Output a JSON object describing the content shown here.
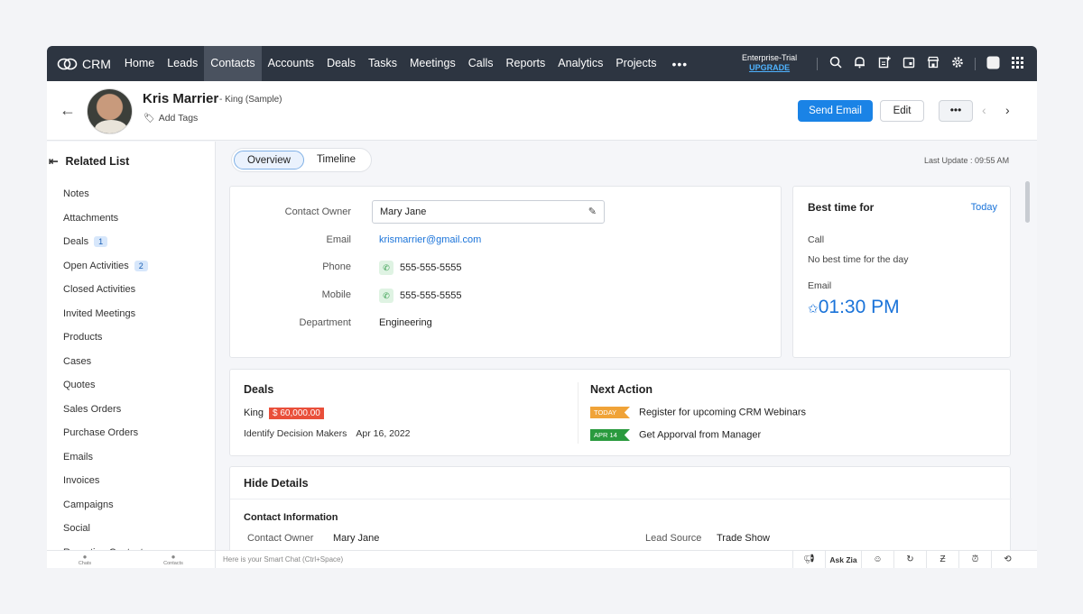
{
  "topnav": {
    "logo_text": "CRM",
    "items": [
      "Home",
      "Leads",
      "Contacts",
      "Accounts",
      "Deals",
      "Tasks",
      "Meetings",
      "Calls",
      "Reports",
      "Analytics",
      "Projects"
    ],
    "active": "Contacts",
    "more": "•••",
    "trial_label": "Enterprise-Trial",
    "upgrade_label": "UPGRADE",
    "icons": [
      "search-icon",
      "bell-icon",
      "add-note-icon",
      "calendar-icon",
      "store-icon",
      "gear-icon",
      "profile-icon",
      "apps-grid-icon"
    ]
  },
  "header": {
    "contact_name": "Kris Marrier",
    "subtitle": "King (Sample)",
    "add_tags": "Add Tags",
    "send_email": "Send Email",
    "edit": "Edit",
    "more": "•••"
  },
  "sidebar": {
    "title": "Related List",
    "items": [
      {
        "label": "Notes",
        "badge": ""
      },
      {
        "label": "Attachments",
        "badge": ""
      },
      {
        "label": "Deals",
        "badge": "1"
      },
      {
        "label": "Open Activities",
        "badge": "2"
      },
      {
        "label": "Closed Activities",
        "badge": ""
      },
      {
        "label": "Invited Meetings",
        "badge": ""
      },
      {
        "label": "Products",
        "badge": ""
      },
      {
        "label": "Cases",
        "badge": ""
      },
      {
        "label": "Quotes",
        "badge": ""
      },
      {
        "label": "Sales Orders",
        "badge": ""
      },
      {
        "label": "Purchase Orders",
        "badge": ""
      },
      {
        "label": "Emails",
        "badge": ""
      },
      {
        "label": "Invoices",
        "badge": ""
      },
      {
        "label": "Campaigns",
        "badge": ""
      },
      {
        "label": "Social",
        "badge": ""
      },
      {
        "label": "Reporting Contacts",
        "badge": ""
      }
    ]
  },
  "tabs": {
    "overview": "Overview",
    "timeline": "Timeline"
  },
  "last_update": "Last Update : 09:55 AM",
  "contact": {
    "owner_label": "Contact Owner",
    "owner_value": "Mary Jane",
    "email_label": "Email",
    "email_value": "krismarrier@gmail.com",
    "phone_label": "Phone",
    "phone_value": "555-555-5555",
    "mobile_label": "Mobile",
    "mobile_value": "555-555-5555",
    "department_label": "Department",
    "department_value": "Engineering"
  },
  "best_time": {
    "title": "Best time for",
    "today": "Today",
    "call_label": "Call",
    "call_value": "No best time for the day",
    "email_label": "Email",
    "email_time": "01:30 PM"
  },
  "deals": {
    "title": "Deals",
    "deal_name": "King",
    "amount": "$ 60,000.00",
    "stage": "Identify Decision Makers",
    "date": "Apr 16, 2022"
  },
  "next_action": {
    "title": "Next Action",
    "items": [
      {
        "tag": "TODAY",
        "text": "Register for upcoming CRM Webinars"
      },
      {
        "tag": "APR 14",
        "text": "Get Apporval from Manager"
      }
    ]
  },
  "details": {
    "hide": "Hide Details",
    "section": "Contact Information",
    "owner_label": "Contact Owner",
    "owner_value": "Mary Jane",
    "lead_source_label": "Lead Source",
    "lead_source_value": "Trade Show"
  },
  "footer": {
    "chats": "Chats",
    "contacts": "Contacts",
    "smart_chat": "Here is your Smart Chat (Ctrl+Space)",
    "ask_zia": "Ask Zia"
  },
  "colors": {
    "nav_bg": "#2d3541",
    "primary": "#1a83e6",
    "price_red": "#e94f3a",
    "today_orange": "#f0a338",
    "apr_green": "#2a9a3e"
  }
}
